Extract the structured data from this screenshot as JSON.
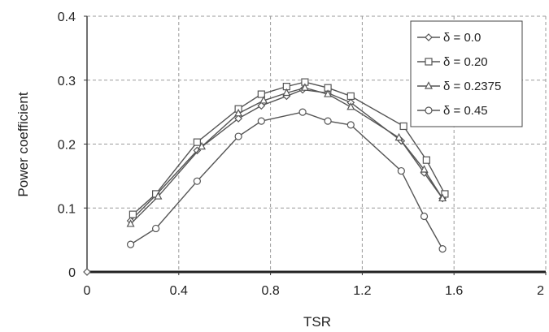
{
  "chart_data": {
    "type": "line",
    "xlabel": "TSR",
    "ylabel": "Power coefficient",
    "xlim": [
      0,
      2
    ],
    "ylim": [
      0,
      0.4
    ],
    "x_ticks": [
      "0",
      "0.4",
      "0.8",
      "1.2",
      "1.6",
      "2"
    ],
    "y_ticks": [
      "0",
      "0.1",
      "0.2",
      "0.3",
      "0.4"
    ],
    "grid": true,
    "legend_position": "top-right",
    "series": [
      {
        "name": "δ = 0.0",
        "marker": "diamond",
        "x": [
          0.19,
          0.3,
          0.48,
          0.66,
          0.76,
          0.87,
          0.94,
          1.05,
          1.15,
          1.37,
          1.47,
          1.55
        ],
        "y": [
          0.08,
          0.12,
          0.19,
          0.24,
          0.26,
          0.275,
          0.285,
          0.28,
          0.265,
          0.205,
          0.155,
          0.115
        ]
      },
      {
        "name": "δ = 0.20",
        "marker": "square",
        "x": [
          0.2,
          0.3,
          0.48,
          0.66,
          0.76,
          0.87,
          0.95,
          1.05,
          1.15,
          1.38,
          1.48,
          1.56
        ],
        "y": [
          0.09,
          0.122,
          0.203,
          0.255,
          0.278,
          0.29,
          0.297,
          0.288,
          0.275,
          0.228,
          0.175,
          0.122
        ]
      },
      {
        "name": "δ = 0.2375",
        "marker": "triangle",
        "x": [
          0.19,
          0.31,
          0.5,
          0.66,
          0.77,
          0.87,
          0.95,
          1.05,
          1.15,
          1.36,
          1.47,
          1.55
        ],
        "y": [
          0.075,
          0.118,
          0.196,
          0.248,
          0.268,
          0.28,
          0.288,
          0.278,
          0.258,
          0.21,
          0.16,
          0.115
        ]
      },
      {
        "name": "δ = 0.45",
        "marker": "circle",
        "x": [
          0.19,
          0.3,
          0.48,
          0.66,
          0.76,
          0.94,
          1.05,
          1.15,
          1.37,
          1.47,
          1.55
        ],
        "y": [
          0.043,
          0.068,
          0.142,
          0.212,
          0.236,
          0.25,
          0.236,
          0.23,
          0.158,
          0.087,
          0.036
        ]
      }
    ]
  }
}
